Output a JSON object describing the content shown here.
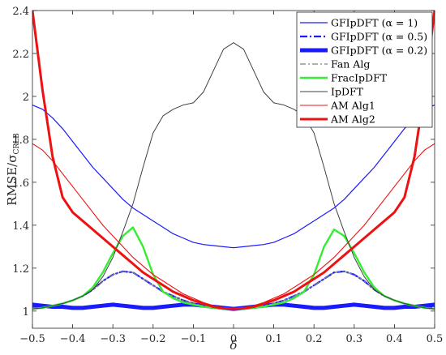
{
  "chart_data": {
    "type": "line",
    "xlabel": "δ",
    "ylabel_main": "RMSE/σ",
    "ylabel_sub": "CRLB",
    "xlim": [
      -0.5,
      0.5
    ],
    "ylim": [
      0.92,
      2.4
    ],
    "xticks": [
      -0.5,
      -0.4,
      -0.3,
      -0.2,
      -0.1,
      0,
      0.1,
      0.2,
      0.3,
      0.4,
      0.5
    ],
    "xtick_labels": [
      "−0.5",
      "−0.4",
      "−0.3",
      "−0.2",
      "−0.1",
      "0",
      "0.1",
      "0.2",
      "0.3",
      "0.4",
      "0.5"
    ],
    "yticks": [
      1,
      1.2,
      1.4,
      1.6,
      1.8,
      2,
      2.2,
      2.4
    ],
    "ytick_labels": [
      "1",
      "1.2",
      "1.4",
      "1.6",
      "1.8",
      "2",
      "2.2",
      "2.4"
    ],
    "grid": false,
    "legend_position": "top-right",
    "x": [
      -0.5,
      -0.475,
      -0.45,
      -0.425,
      -0.4,
      -0.375,
      -0.35,
      -0.325,
      -0.3,
      -0.275,
      -0.25,
      -0.225,
      -0.2,
      -0.175,
      -0.15,
      -0.125,
      -0.1,
      -0.075,
      -0.05,
      -0.025,
      0,
      0.025,
      0.05,
      0.075,
      0.1,
      0.125,
      0.15,
      0.175,
      0.2,
      0.225,
      0.25,
      0.275,
      0.3,
      0.325,
      0.35,
      0.375,
      0.4,
      0.425,
      0.45,
      0.475,
      0.5
    ],
    "series": [
      {
        "name": "GFIpDFT (α = 1)",
        "color": "#1a1aff",
        "width": 1.2,
        "dash": "",
        "values": [
          1.96,
          1.94,
          1.9,
          1.85,
          1.79,
          1.73,
          1.67,
          1.62,
          1.57,
          1.52,
          1.48,
          1.45,
          1.42,
          1.39,
          1.36,
          1.34,
          1.32,
          1.31,
          1.305,
          1.3,
          1.295,
          1.3,
          1.305,
          1.31,
          1.32,
          1.34,
          1.36,
          1.39,
          1.42,
          1.45,
          1.48,
          1.52,
          1.57,
          1.62,
          1.67,
          1.73,
          1.79,
          1.85,
          1.9,
          1.94,
          1.96
        ]
      },
      {
        "name": "GFIpDFT (α = 0.5)",
        "color": "#1a1aff",
        "width": 2.2,
        "dash": "9,3,2,3",
        "values": [
          1.02,
          1.02,
          1.025,
          1.035,
          1.05,
          1.07,
          1.1,
          1.14,
          1.17,
          1.185,
          1.18,
          1.15,
          1.12,
          1.09,
          1.07,
          1.05,
          1.035,
          1.025,
          1.015,
          1.01,
          1.01,
          1.01,
          1.015,
          1.025,
          1.035,
          1.05,
          1.07,
          1.09,
          1.12,
          1.15,
          1.18,
          1.185,
          1.17,
          1.14,
          1.1,
          1.07,
          1.05,
          1.035,
          1.025,
          1.02,
          1.02
        ]
      },
      {
        "name": "GFIpDFT (α = 0.2)",
        "color": "#1a1aff",
        "width": 5,
        "dash": "",
        "values": [
          1.03,
          1.025,
          1.02,
          1.02,
          1.015,
          1.015,
          1.02,
          1.025,
          1.03,
          1.025,
          1.02,
          1.015,
          1.015,
          1.02,
          1.025,
          1.03,
          1.03,
          1.025,
          1.02,
          1.015,
          1.01,
          1.015,
          1.02,
          1.025,
          1.03,
          1.03,
          1.025,
          1.02,
          1.015,
          1.015,
          1.02,
          1.025,
          1.03,
          1.025,
          1.02,
          1.015,
          1.015,
          1.02,
          1.02,
          1.025,
          1.03
        ]
      },
      {
        "name": "Fan Alg",
        "color": "#808080",
        "width": 1.2,
        "dash": "7,3,2,3",
        "values": [
          1.01,
          1.015,
          1.025,
          1.035,
          1.05,
          1.07,
          1.1,
          1.14,
          1.17,
          1.185,
          1.18,
          1.15,
          1.12,
          1.09,
          1.07,
          1.05,
          1.035,
          1.025,
          1.015,
          1.01,
          1.01,
          1.01,
          1.015,
          1.025,
          1.035,
          1.05,
          1.07,
          1.09,
          1.12,
          1.15,
          1.18,
          1.185,
          1.17,
          1.14,
          1.1,
          1.07,
          1.05,
          1.035,
          1.025,
          1.015,
          1.01
        ]
      },
      {
        "name": "FracIpDFT",
        "color": "#33ee33",
        "width": 2.4,
        "dash": "",
        "values": [
          1.01,
          1.015,
          1.025,
          1.035,
          1.05,
          1.07,
          1.11,
          1.18,
          1.27,
          1.35,
          1.39,
          1.3,
          1.17,
          1.09,
          1.06,
          1.04,
          1.03,
          1.02,
          1.015,
          1.01,
          1.01,
          1.01,
          1.015,
          1.02,
          1.03,
          1.04,
          1.06,
          1.09,
          1.17,
          1.3,
          1.38,
          1.35,
          1.27,
          1.18,
          1.11,
          1.07,
          1.05,
          1.035,
          1.025,
          1.015,
          1.01
        ]
      },
      {
        "name": "IpDFT",
        "color": "#404040",
        "width": 1,
        "dash": "",
        "values": [
          1.01,
          1.015,
          1.025,
          1.035,
          1.05,
          1.07,
          1.1,
          1.16,
          1.25,
          1.37,
          1.5,
          1.67,
          1.83,
          1.91,
          1.94,
          1.96,
          1.97,
          2.02,
          2.12,
          2.22,
          2.25,
          2.22,
          2.12,
          2.02,
          1.97,
          1.96,
          1.94,
          1.91,
          1.83,
          1.67,
          1.5,
          1.37,
          1.25,
          1.16,
          1.1,
          1.07,
          1.05,
          1.035,
          1.025,
          1.015,
          1.01
        ]
      },
      {
        "name": "AM Alg1",
        "color": "#ee1111",
        "width": 1.1,
        "dash": "",
        "values": [
          1.78,
          1.75,
          1.7,
          1.64,
          1.58,
          1.52,
          1.46,
          1.4,
          1.35,
          1.3,
          1.25,
          1.21,
          1.17,
          1.14,
          1.11,
          1.08,
          1.06,
          1.04,
          1.025,
          1.015,
          1.01,
          1.015,
          1.025,
          1.04,
          1.06,
          1.08,
          1.11,
          1.14,
          1.17,
          1.21,
          1.25,
          1.3,
          1.35,
          1.4,
          1.46,
          1.52,
          1.58,
          1.64,
          1.7,
          1.75,
          1.78
        ]
      },
      {
        "name": "AM Alg2",
        "color": "#ee1111",
        "width": 3,
        "dash": "",
        "values": [
          2.4,
          2.03,
          1.72,
          1.53,
          1.46,
          1.42,
          1.38,
          1.34,
          1.3,
          1.26,
          1.22,
          1.18,
          1.15,
          1.12,
          1.09,
          1.07,
          1.05,
          1.035,
          1.02,
          1.013,
          1.01,
          1.013,
          1.02,
          1.035,
          1.05,
          1.07,
          1.09,
          1.12,
          1.15,
          1.18,
          1.22,
          1.26,
          1.3,
          1.34,
          1.38,
          1.42,
          1.46,
          1.53,
          1.72,
          2.03,
          2.4
        ]
      }
    ]
  }
}
